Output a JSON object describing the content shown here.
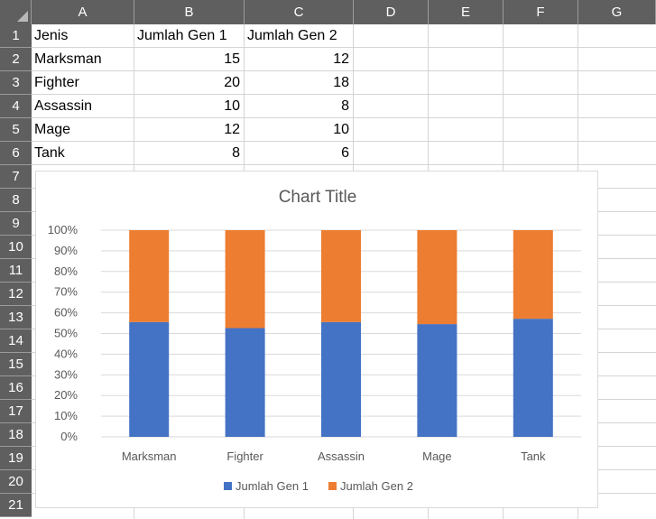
{
  "columns": [
    "A",
    "B",
    "C",
    "D",
    "E",
    "F",
    "G"
  ],
  "rows": [
    "1",
    "2",
    "3",
    "4",
    "5",
    "6",
    "7",
    "8",
    "9",
    "10",
    "11",
    "12",
    "13",
    "14",
    "15",
    "16",
    "17",
    "18",
    "19",
    "20",
    "21"
  ],
  "cells": {
    "header": [
      "Jenis",
      "Jumlah Gen 1",
      "Jumlah Gen 2"
    ],
    "data": [
      [
        "Marksman",
        "15",
        "12"
      ],
      [
        "Fighter",
        "20",
        "18"
      ],
      [
        "Assassin",
        "10",
        "8"
      ],
      [
        "Mage",
        "12",
        "10"
      ],
      [
        "Tank",
        "8",
        "6"
      ]
    ]
  },
  "colors": {
    "header_bg": "#5f5f5f",
    "gridline": "#d4d4d4",
    "series1": "#4472c4",
    "series2": "#ed7d31"
  },
  "chart_data": {
    "type": "bar",
    "stacking": "percent",
    "title": "Chart Title",
    "categories": [
      "Marksman",
      "Fighter",
      "Assassin",
      "Mage",
      "Tank"
    ],
    "series": [
      {
        "name": "Jumlah Gen 1",
        "values": [
          15,
          20,
          10,
          12,
          8
        ],
        "color": "#4472c4"
      },
      {
        "name": "Jumlah Gen 2",
        "values": [
          12,
          18,
          8,
          10,
          6
        ],
        "color": "#ed7d31"
      }
    ],
    "yticks": [
      "0%",
      "10%",
      "20%",
      "30%",
      "40%",
      "50%",
      "60%",
      "70%",
      "80%",
      "90%",
      "100%"
    ],
    "ylim": [
      0,
      100
    ],
    "grid": true,
    "legend_position": "bottom"
  }
}
